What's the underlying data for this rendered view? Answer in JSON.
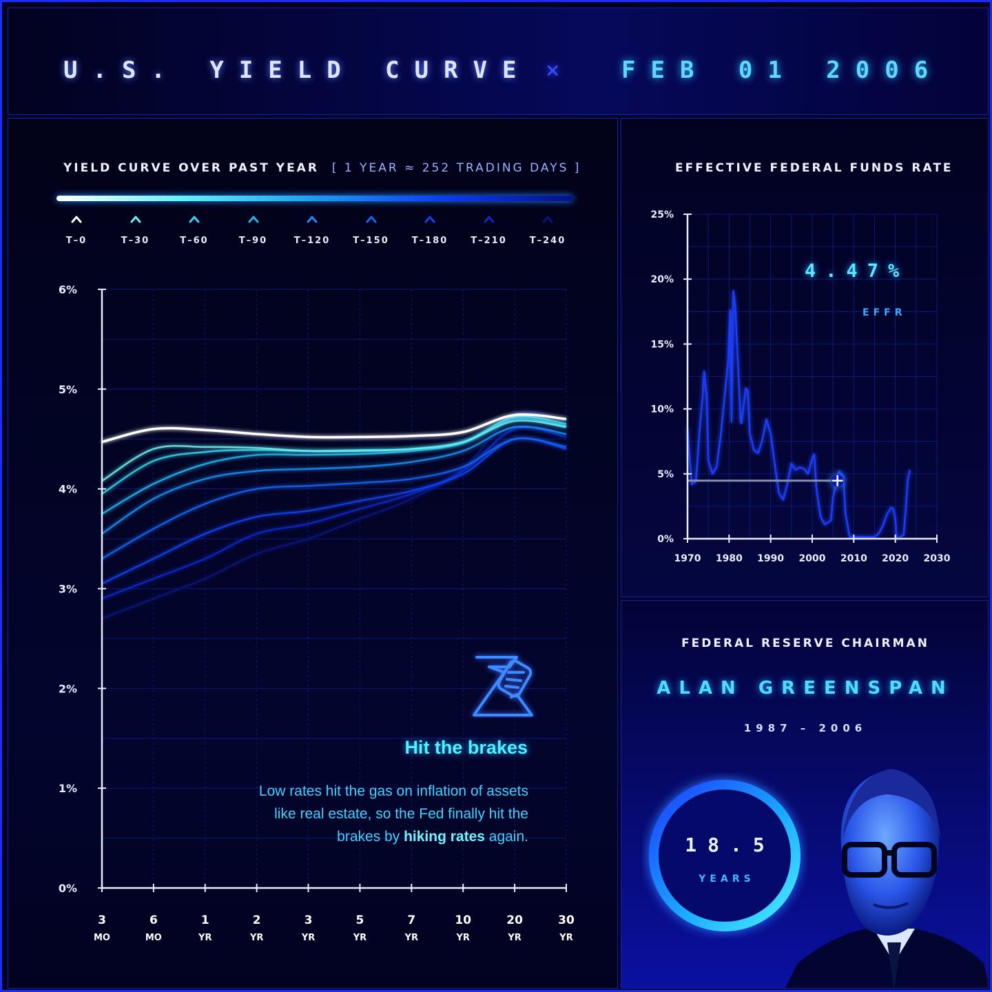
{
  "title": {
    "main": "U.S. YIELD CURVE",
    "separator": "×",
    "date": "FEB 01 2006"
  },
  "yield_panel": {
    "heading": "YIELD CURVE OVER PAST YEAR",
    "subheading": "[ 1 YEAR ≈ 252 TRADING DAYS ]",
    "legend": [
      {
        "label": "T–0",
        "color": "#ffffff"
      },
      {
        "label": "T–30",
        "color": "#6ff0f0"
      },
      {
        "label": "T–60",
        "color": "#33d6ef"
      },
      {
        "label": "T–90",
        "color": "#22b6f0"
      },
      {
        "label": "T–120",
        "color": "#1b8ff2"
      },
      {
        "label": "T–150",
        "color": "#1466f4"
      },
      {
        "label": "T–180",
        "color": "#0f44f0"
      },
      {
        "label": "T–210",
        "color": "#0c28c8"
      },
      {
        "label": "T–240",
        "color": "#0a1676"
      }
    ],
    "callout": {
      "icon": "hand-brake-icon",
      "title": "Hit the brakes",
      "body_before": "Low rates hit the gas on inflation of assets like real estate, so the Fed finally hit the brakes by ",
      "body_bold": "hiking rates",
      "body_after": " again."
    }
  },
  "effr_panel": {
    "heading": "EFFECTIVE FEDERAL FUNDS RATE",
    "value": "4.47%",
    "value_label": "EFFR"
  },
  "chair_panel": {
    "heading": "FEDERAL RESERVE CHAIRMAN",
    "name": "ALAN GREENSPAN",
    "term": "1987 – 2006",
    "tenure_value": "18.5",
    "tenure_unit": "YEARS",
    "portrait_icon": "chairman-portrait"
  },
  "chart_data": [
    {
      "type": "line",
      "title": "YIELD CURVE OVER PAST YEAR",
      "categories": [
        "3 MO",
        "6 MO",
        "1 YR",
        "2 YR",
        "3 YR",
        "5 YR",
        "7 YR",
        "10 YR",
        "20 YR",
        "30 YR"
      ],
      "x_tick_top": [
        "3",
        "6",
        "1",
        "2",
        "3",
        "5",
        "7",
        "10",
        "20",
        "30"
      ],
      "x_tick_bottom": [
        "MO",
        "MO",
        "YR",
        "YR",
        "YR",
        "YR",
        "YR",
        "YR",
        "YR",
        "YR"
      ],
      "y_ticks": [
        "0%",
        "1%",
        "2%",
        "3%",
        "4%",
        "5%",
        "6%"
      ],
      "ylim": [
        0,
        6
      ],
      "grid": true,
      "series": [
        {
          "name": "T–0",
          "values": [
            4.47,
            4.6,
            4.59,
            4.55,
            4.52,
            4.52,
            4.53,
            4.57,
            4.74,
            4.7
          ]
        },
        {
          "name": "T–30",
          "values": [
            4.08,
            4.4,
            4.42,
            4.41,
            4.38,
            4.38,
            4.4,
            4.47,
            4.68,
            4.62
          ]
        },
        {
          "name": "T–60",
          "values": [
            3.95,
            4.28,
            4.37,
            4.39,
            4.38,
            4.39,
            4.4,
            4.47,
            4.72,
            4.65
          ]
        },
        {
          "name": "T–90",
          "values": [
            3.75,
            4.05,
            4.25,
            4.34,
            4.34,
            4.35,
            4.38,
            4.46,
            4.7,
            4.63
          ]
        },
        {
          "name": "T–120",
          "values": [
            3.55,
            3.9,
            4.1,
            4.18,
            4.2,
            4.22,
            4.27,
            4.38,
            4.62,
            4.55
          ]
        },
        {
          "name": "T–150",
          "values": [
            3.3,
            3.6,
            3.85,
            4.0,
            4.03,
            4.06,
            4.1,
            4.22,
            4.5,
            4.42
          ]
        },
        {
          "name": "T–180",
          "values": [
            3.05,
            3.3,
            3.55,
            3.72,
            3.78,
            3.88,
            3.98,
            4.15,
            4.5,
            4.4
          ]
        },
        {
          "name": "T–210",
          "values": [
            2.9,
            3.1,
            3.3,
            3.55,
            3.65,
            3.8,
            3.95,
            4.18,
            4.6,
            4.52
          ]
        },
        {
          "name": "T–240",
          "values": [
            2.7,
            2.9,
            3.1,
            3.35,
            3.5,
            3.7,
            3.9,
            4.2,
            4.75,
            4.68
          ]
        }
      ]
    },
    {
      "type": "line",
      "title": "EFFECTIVE FEDERAL FUNDS RATE",
      "x_ticks": [
        "1970",
        "1980",
        "1990",
        "2000",
        "2010",
        "2020",
        "2030"
      ],
      "y_ticks": [
        "0%",
        "5%",
        "10%",
        "15%",
        "20%",
        "25%"
      ],
      "xlim": [
        1970,
        2030
      ],
      "ylim": [
        0,
        25
      ],
      "grid": true,
      "highlight": {
        "x": 2006.08,
        "y": 4.47
      },
      "series": [
        {
          "name": "EFFR",
          "x": [
            1970,
            1971,
            1972,
            1973,
            1973.6,
            1974,
            1974.6,
            1975,
            1976,
            1977,
            1978,
            1979,
            1979.8,
            1980.3,
            1980.6,
            1981,
            1981.5,
            1982,
            1982.8,
            1983,
            1984,
            1984.5,
            1985,
            1986,
            1987,
            1988,
            1989,
            1990,
            1991,
            1992,
            1993,
            1994,
            1995,
            1996,
            1997,
            1998,
            1999,
            2000,
            2000.5,
            2001,
            2002,
            2003,
            2004,
            2004.5,
            2005,
            2006,
            2006.5,
            2007,
            2007.5,
            2008,
            2008.8,
            2009,
            2012,
            2015,
            2016,
            2017,
            2018,
            2019,
            2019.5,
            2020,
            2020.3,
            2021,
            2022,
            2022.5,
            2023,
            2023.5
          ],
          "y": [
            8.5,
            4.2,
            4.4,
            8.7,
            10.8,
            12.9,
            11.0,
            6.0,
            5.0,
            5.5,
            8.0,
            11.2,
            13.8,
            17.6,
            9.0,
            19.1,
            17.8,
            14.5,
            9.0,
            8.9,
            11.6,
            11.4,
            8.1,
            6.8,
            6.6,
            7.6,
            9.2,
            8.1,
            5.7,
            3.5,
            3.0,
            4.2,
            5.8,
            5.3,
            5.5,
            5.4,
            5.0,
            6.2,
            6.5,
            3.9,
            1.7,
            1.1,
            1.3,
            1.4,
            3.2,
            4.47,
            5.2,
            5.0,
            4.8,
            1.9,
            0.5,
            0.16,
            0.14,
            0.13,
            0.4,
            1.0,
            1.9,
            2.4,
            2.3,
            1.5,
            0.1,
            0.08,
            0.3,
            2.3,
            4.6,
            5.3
          ]
        }
      ]
    }
  ]
}
